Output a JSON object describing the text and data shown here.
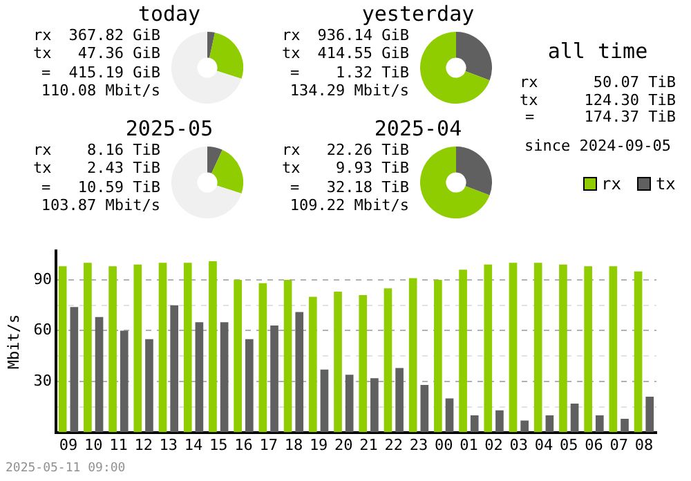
{
  "chart_data": [
    {
      "type": "donut",
      "title": "today",
      "categories": [
        null,
        null,
        null
      ],
      "values": [
        3.4,
        26.6,
        70
      ],
      "colors": [
        "#606060",
        "#8fcc00",
        "#f0f0f0"
      ],
      "annotations": [
        "rx 367.82 GiB",
        "tx 47.36 GiB",
        "= 415.19 GiB",
        "110.08 Mbit/s"
      ]
    },
    {
      "type": "donut",
      "title": "yesterday",
      "categories": [
        null,
        null
      ],
      "values": [
        30.7,
        69.3
      ],
      "colors": [
        "#606060",
        "#8fcc00"
      ],
      "annotations": [
        "rx 936.14 GiB",
        "tx 414.55 GiB",
        "= 1.32 TiB",
        "134.29 Mbit/s"
      ]
    },
    {
      "type": "donut",
      "title": "2025-05",
      "categories": [
        null,
        null,
        null
      ],
      "values": [
        6.9,
        23.1,
        70
      ],
      "colors": [
        "#606060",
        "#8fcc00",
        "#f0f0f0"
      ],
      "annotations": [
        "rx 8.16 TiB",
        "tx 2.43 TiB",
        "= 10.59 TiB",
        "103.87 Mbit/s"
      ]
    },
    {
      "type": "donut",
      "title": "2025-04",
      "categories": [
        null,
        null
      ],
      "values": [
        30.8,
        69.2
      ],
      "colors": [
        "#606060",
        "#8fcc00"
      ],
      "annotations": [
        "rx 22.26 TiB",
        "tx 9.93 TiB",
        "= 32.18 TiB",
        "109.22 Mbit/s"
      ]
    },
    {
      "type": "other",
      "title": "all time",
      "annotations": [
        "rx 50.07 TiB",
        "tx 124.30 TiB",
        "= 174.37 TiB",
        "since 2024-09-05"
      ]
    },
    {
      "type": "bar",
      "ylabel": "Mbit/s",
      "categories": [
        "09",
        "10",
        "11",
        "12",
        "13",
        "14",
        "15",
        "16",
        "17",
        "18",
        "19",
        "20",
        "21",
        "22",
        "23",
        "00",
        "01",
        "02",
        "03",
        "04",
        "05",
        "06",
        "07",
        "08"
      ],
      "series": [
        {
          "name": "rx",
          "color": "#8fcc00",
          "values": [
            98,
            100,
            98,
            99,
            100,
            100,
            101,
            90,
            88,
            90,
            80,
            83,
            81,
            85,
            91,
            90,
            96,
            99,
            100,
            100,
            99,
            98,
            98,
            95
          ]
        },
        {
          "name": "tx",
          "color": "#606060",
          "values": [
            74,
            68,
            60,
            55,
            75,
            65,
            65,
            55,
            63,
            71,
            37,
            34,
            32,
            38,
            28,
            20,
            10,
            13,
            7,
            10,
            17,
            10,
            8,
            21
          ]
        }
      ],
      "ylim": [
        0,
        107
      ],
      "yticks": [
        {
          "value": 15,
          "label": null
        },
        30,
        {
          "value": 45,
          "label": null
        },
        60,
        {
          "value": 75,
          "label": null
        },
        90
      ],
      "grid": "y",
      "legend": "top right",
      "annotations": [
        "2025-05-11 09:00"
      ]
    }
  ]
}
